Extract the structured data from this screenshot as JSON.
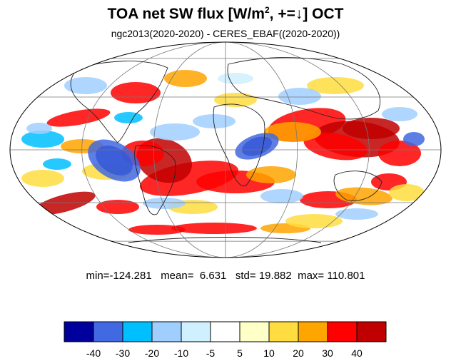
{
  "title": {
    "prefix": "TOA net SW flux [W/m",
    "superscript": "2",
    "suffix": ", +=↓]  OCT"
  },
  "subtitle": "ngc2013(2020-2020) - CERES_EBAF((2020-2020))",
  "stats": {
    "min_label": "min=",
    "min": "-124.281",
    "mean_label": "mean=",
    "mean": "6.631",
    "std_label": "std=",
    "std": "19.882",
    "max_label": "max=",
    "max": "110.801"
  },
  "colorbar": {
    "colors": [
      "#00009c",
      "#4169e1",
      "#00bfff",
      "#a0cfff",
      "#cff0ff",
      "#ffffff",
      "#ffffc8",
      "#ffdd40",
      "#ffa500",
      "#ff0000",
      "#c00000"
    ],
    "labels": [
      "-40",
      "-30",
      "-20",
      "-10",
      "-5",
      "5",
      "10",
      "20",
      "30",
      "40"
    ]
  },
  "map": {
    "projection": "mollweide",
    "ocean_color": "#ffffff"
  }
}
